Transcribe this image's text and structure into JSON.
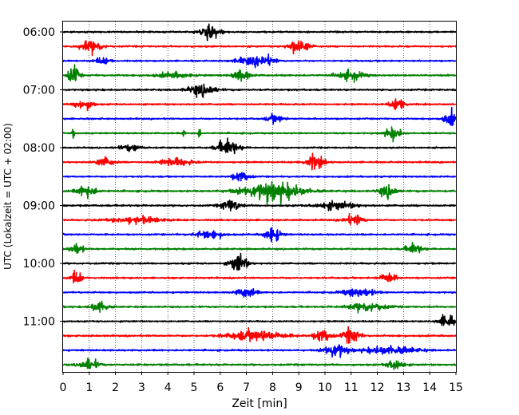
{
  "chart_data": {
    "type": "line",
    "title": "",
    "xlabel": "Zeit  [min]",
    "ylabel": "UTC (Lokalzeit = UTC + 02:00)",
    "xlim": [
      0,
      15
    ],
    "x_ticks": [
      0,
      1,
      2,
      3,
      4,
      5,
      6,
      7,
      8,
      9,
      10,
      11,
      12,
      13,
      14,
      15
    ],
    "grid_x": true,
    "y_tick_labels": [
      "06:00",
      "07:00",
      "08:00",
      "09:00",
      "10:00",
      "11:00"
    ],
    "rows_per_hour": 4,
    "colors": [
      "#000000",
      "#ff0000",
      "#0000ff",
      "#008000"
    ],
    "traces": [
      {
        "time": "06:00",
        "base": 0.5,
        "events": [
          [
            5.6,
            0.35,
            0.6
          ]
        ]
      },
      {
        "time": "06:15",
        "base": 0.5,
        "events": [
          [
            1.1,
            0.4,
            0.45
          ],
          [
            9.0,
            0.35,
            0.6
          ]
        ]
      },
      {
        "time": "06:30",
        "base": 0.45,
        "events": [
          [
            1.5,
            0.3,
            0.25
          ],
          [
            7.2,
            0.6,
            0.3
          ],
          [
            7.8,
            0.3,
            0.3
          ]
        ]
      },
      {
        "time": "06:45",
        "base": 0.55,
        "events": [
          [
            0.4,
            0.2,
            0.7
          ],
          [
            4.2,
            0.6,
            0.2
          ],
          [
            6.8,
            0.3,
            0.45
          ],
          [
            11.0,
            0.5,
            0.35
          ]
        ]
      },
      {
        "time": "07:00",
        "base": 0.5,
        "events": [
          [
            5.3,
            0.5,
            0.45
          ]
        ]
      },
      {
        "time": "07:15",
        "base": 0.5,
        "events": [
          [
            0.6,
            0.2,
            0.35
          ],
          [
            1.0,
            0.2,
            0.3
          ],
          [
            12.8,
            0.3,
            0.45
          ]
        ]
      },
      {
        "time": "07:30",
        "base": 0.45,
        "events": [
          [
            8.1,
            0.3,
            0.3
          ],
          [
            14.8,
            0.25,
            0.55
          ]
        ]
      },
      {
        "time": "07:45",
        "base": 0.45,
        "events": [
          [
            0.4,
            0.04,
            0.6
          ],
          [
            4.6,
            0.04,
            0.45
          ],
          [
            5.2,
            0.05,
            0.4
          ],
          [
            12.6,
            0.3,
            0.45
          ]
        ]
      },
      {
        "time": "08:00",
        "base": 0.45,
        "events": [
          [
            2.6,
            0.4,
            0.25
          ],
          [
            6.3,
            0.4,
            0.6
          ]
        ]
      },
      {
        "time": "08:15",
        "base": 0.5,
        "events": [
          [
            1.6,
            0.35,
            0.35
          ],
          [
            4.3,
            0.6,
            0.3
          ],
          [
            9.6,
            0.35,
            0.55
          ]
        ]
      },
      {
        "time": "08:30",
        "base": 0.45,
        "events": [
          [
            6.8,
            0.3,
            0.45
          ]
        ]
      },
      {
        "time": "08:45",
        "base": 0.55,
        "events": [
          [
            0.9,
            0.35,
            0.45
          ],
          [
            8.0,
            1.1,
            0.7
          ],
          [
            12.4,
            0.3,
            0.5
          ]
        ]
      },
      {
        "time": "09:00",
        "base": 0.55,
        "events": [
          [
            6.4,
            0.35,
            0.45
          ],
          [
            10.4,
            0.7,
            0.3
          ]
        ]
      },
      {
        "time": "09:15",
        "base": 0.5,
        "events": [
          [
            2.8,
            1.0,
            0.25
          ],
          [
            11.1,
            0.35,
            0.4
          ]
        ]
      },
      {
        "time": "09:30",
        "base": 0.5,
        "events": [
          [
            5.6,
            0.5,
            0.3
          ],
          [
            8.0,
            0.3,
            0.55
          ]
        ]
      },
      {
        "time": "09:45",
        "base": 0.5,
        "events": [
          [
            0.5,
            0.25,
            0.45
          ],
          [
            13.4,
            0.3,
            0.4
          ]
        ]
      },
      {
        "time": "10:00",
        "base": 0.5,
        "events": [
          [
            6.7,
            0.3,
            0.75
          ]
        ]
      },
      {
        "time": "10:15",
        "base": 0.5,
        "events": [
          [
            0.5,
            0.2,
            0.55
          ],
          [
            12.4,
            0.3,
            0.4
          ]
        ]
      },
      {
        "time": "10:30",
        "base": 0.45,
        "events": [
          [
            7.0,
            0.35,
            0.4
          ],
          [
            11.3,
            0.6,
            0.35
          ]
        ]
      },
      {
        "time": "10:45",
        "base": 0.5,
        "events": [
          [
            1.4,
            0.3,
            0.45
          ],
          [
            11.6,
            0.7,
            0.35
          ]
        ]
      },
      {
        "time": "11:00",
        "base": 0.45,
        "events": [
          [
            14.7,
            0.3,
            0.55
          ]
        ]
      },
      {
        "time": "11:15",
        "base": 0.55,
        "events": [
          [
            7.4,
            1.0,
            0.4
          ],
          [
            9.9,
            0.3,
            0.55
          ],
          [
            11.0,
            0.3,
            0.6
          ]
        ]
      },
      {
        "time": "11:30",
        "base": 0.5,
        "events": [
          [
            10.4,
            0.4,
            0.55
          ],
          [
            12.5,
            1.0,
            0.3
          ]
        ]
      },
      {
        "time": "11:45",
        "base": 0.55,
        "events": [
          [
            1.0,
            0.35,
            0.4
          ],
          [
            12.7,
            0.3,
            0.45
          ]
        ]
      }
    ]
  }
}
